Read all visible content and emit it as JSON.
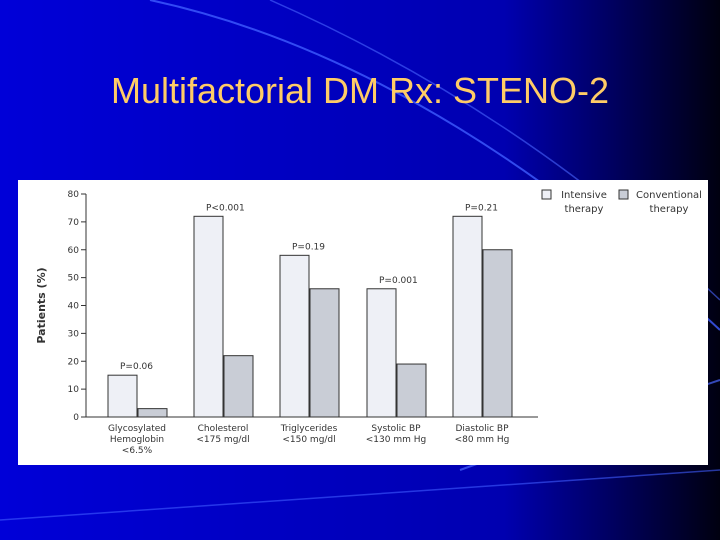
{
  "slide": {
    "title": "Multifactorial DM Rx: STENO-2"
  },
  "colors": {
    "background": "#0000cc",
    "title": "#ffcc66",
    "intensive": "#eef0f6",
    "conventional": "#c9cdd6"
  },
  "chart_data": {
    "type": "bar",
    "title": "",
    "xlabel": "",
    "ylabel": "Patients (%)",
    "ylim": [
      0,
      80
    ],
    "yticks": [
      0,
      10,
      20,
      30,
      40,
      50,
      60,
      70,
      80
    ],
    "grid": false,
    "legend_position": "top-right",
    "categories": [
      [
        "Glycosylated",
        "Hemoglobin",
        "<6.5%"
      ],
      [
        "Cholesterol",
        "<175 mg/dl"
      ],
      [
        "Triglycerides",
        "<150 mg/dl"
      ],
      [
        "Systolic BP",
        "<130 mm Hg"
      ],
      [
        "Diastolic BP",
        "<80 mm Hg"
      ]
    ],
    "series": [
      {
        "name": [
          "Intensive",
          "therapy"
        ],
        "color": "#eef0f6",
        "values": [
          15,
          72,
          58,
          46,
          72
        ]
      },
      {
        "name": [
          "Conventional",
          "therapy"
        ],
        "color": "#c9cdd6",
        "values": [
          3,
          22,
          46,
          19,
          60
        ]
      }
    ],
    "annotations": [
      "P=0.06",
      "P<0.001",
      "P=0.19",
      "P=0.001",
      "P=0.21"
    ]
  }
}
